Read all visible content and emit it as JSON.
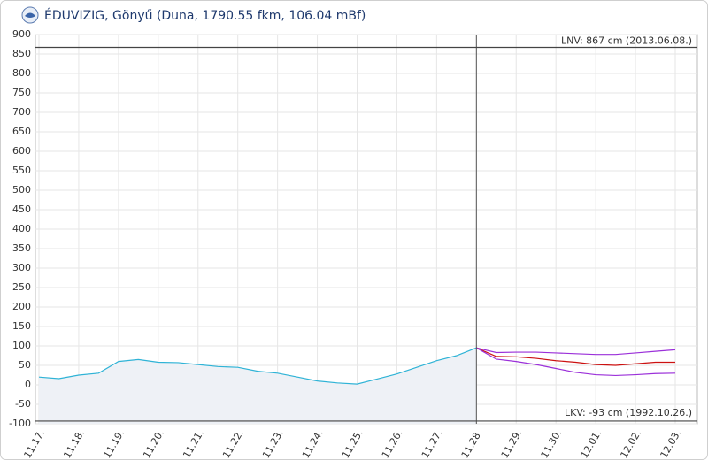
{
  "chart_data": {
    "type": "line",
    "title": "ÉDUVIZIG, Gönyű (Duna, 1790.55 fkm, 106.04 mBf)",
    "categories": [
      "11.17.",
      null,
      "11.18.",
      null,
      "11.19.",
      null,
      "11.20.",
      null,
      "11.21.",
      null,
      "11.22.",
      null,
      "11.23.",
      null,
      "11.24.",
      null,
      "11.25.",
      null,
      "11.26.",
      null,
      "11.27.",
      null,
      "11.28.",
      null,
      "11.29.",
      null,
      "11.30.",
      null,
      "12.01.",
      null,
      "12.02.",
      null,
      "12.03."
    ],
    "series": [
      {
        "color": "#2fb3d6",
        "area": true,
        "values": [
          20,
          16,
          25,
          30,
          60,
          65,
          58,
          57,
          52,
          47,
          45,
          35,
          30,
          20,
          10,
          5,
          2,
          15,
          28,
          45,
          62,
          75,
          95,
          null,
          null,
          null,
          null,
          null,
          null,
          null,
          null,
          null,
          null
        ]
      },
      {
        "color": "#9b30d9",
        "values": [
          null,
          null,
          null,
          null,
          null,
          null,
          null,
          null,
          null,
          null,
          null,
          null,
          null,
          null,
          null,
          null,
          null,
          null,
          null,
          null,
          null,
          null,
          95,
          83,
          84,
          84,
          82,
          80,
          78,
          78,
          82,
          86,
          90
        ]
      },
      {
        "color": "#cc1111",
        "values": [
          null,
          null,
          null,
          null,
          null,
          null,
          null,
          null,
          null,
          null,
          null,
          null,
          null,
          null,
          null,
          null,
          null,
          null,
          null,
          null,
          null,
          null,
          95,
          73,
          72,
          68,
          62,
          58,
          52,
          50,
          54,
          58,
          58
        ]
      },
      {
        "color": "#9b30d9",
        "values": [
          null,
          null,
          null,
          null,
          null,
          null,
          null,
          null,
          null,
          null,
          null,
          null,
          null,
          null,
          null,
          null,
          null,
          null,
          null,
          null,
          null,
          null,
          95,
          66,
          60,
          52,
          42,
          32,
          26,
          24,
          26,
          29,
          30
        ]
      }
    ],
    "reference_lines": [
      {
        "value": 867,
        "label": "LNV: 867 cm (2013.06.08.)"
      },
      {
        "value": -93,
        "label": "LKV: -93 cm (1992.10.26.)"
      }
    ],
    "ylim": [
      -100,
      900
    ],
    "yticks": [
      -100,
      -50,
      0,
      50,
      100,
      150,
      200,
      250,
      300,
      350,
      400,
      450,
      500,
      550,
      600,
      650,
      700,
      750,
      800,
      850,
      900
    ],
    "grid": true
  }
}
